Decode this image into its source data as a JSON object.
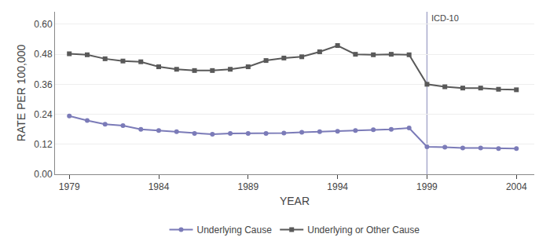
{
  "chart_data": {
    "type": "line",
    "x_label": "YEAR",
    "y_label": "RATE PER 100,000",
    "x": [
      1979,
      1980,
      1981,
      1982,
      1983,
      1984,
      1985,
      1986,
      1987,
      1988,
      1989,
      1990,
      1991,
      1992,
      1993,
      1994,
      1995,
      1996,
      1997,
      1998,
      1999,
      2000,
      2001,
      2002,
      2003,
      2004
    ],
    "series": [
      {
        "name": "Underlying Cause",
        "color": "#7b7bb8",
        "marker": "circle",
        "values": [
          0.233,
          0.215,
          0.2,
          0.195,
          0.18,
          0.175,
          0.17,
          0.163,
          0.16,
          0.163,
          0.163,
          0.163,
          0.165,
          0.168,
          0.17,
          0.172,
          0.175,
          0.178,
          0.18,
          0.185,
          0.11,
          0.108,
          0.105,
          0.105,
          0.103,
          0.103
        ]
      },
      {
        "name": "Underlying or Other Cause",
        "color": "#595959",
        "marker": "square",
        "values": [
          0.482,
          0.478,
          0.462,
          0.453,
          0.45,
          0.43,
          0.42,
          0.415,
          0.415,
          0.42,
          0.43,
          0.455,
          0.465,
          0.47,
          0.49,
          0.515,
          0.48,
          0.478,
          0.48,
          0.478,
          0.36,
          0.35,
          0.345,
          0.345,
          0.34,
          0.338
        ]
      }
    ],
    "annotations": [
      {
        "text": "ICD-10",
        "x": 1999,
        "color": "#a8aacb"
      }
    ],
    "xlim": [
      1978.2,
      2005.0
    ],
    "xticks": [
      1979,
      1984,
      1989,
      1994,
      1999,
      2004
    ],
    "ylim": [
      0.0,
      0.65
    ],
    "yticks": [
      {
        "value": 0,
        "label": "0.00"
      },
      0.12,
      0.24,
      0.36,
      0.48,
      {
        "value": 0.6,
        "label": "0.60"
      }
    ],
    "grid": true,
    "legend": "bottom"
  }
}
